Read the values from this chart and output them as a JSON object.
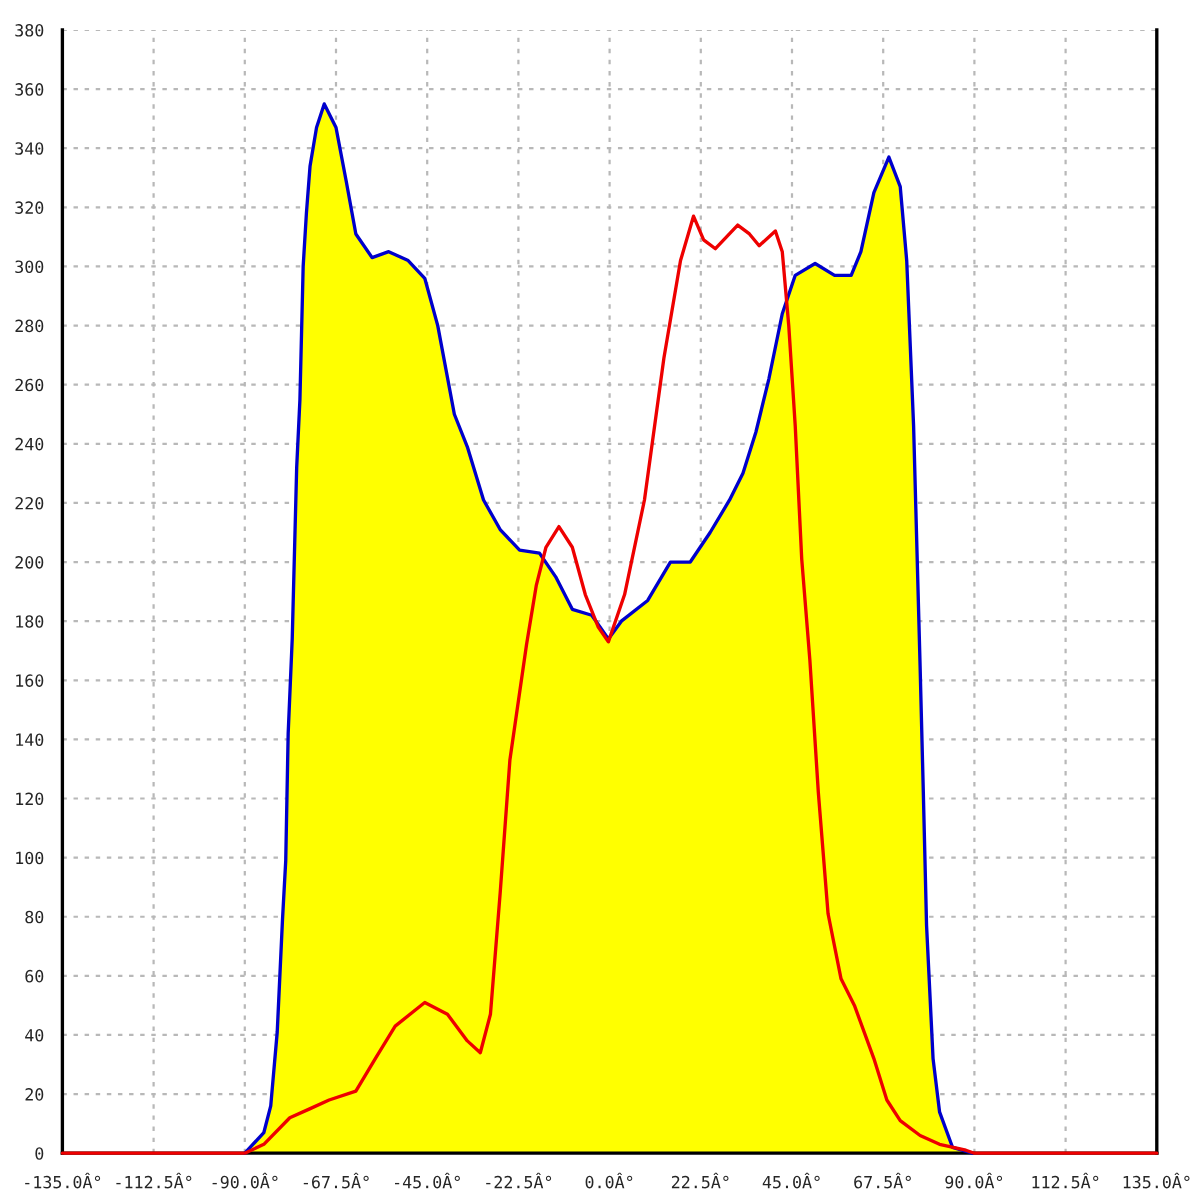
{
  "chart_data": {
    "type": "area",
    "xlim": [
      -135,
      135
    ],
    "ylim": [
      0,
      380
    ],
    "xticks": [
      {
        "value": -135,
        "label": "-135.0Â°"
      },
      {
        "value": -112.5,
        "label": "-112.5Â°"
      },
      {
        "value": -90,
        "label": "-90.0Â°"
      },
      {
        "value": -67.5,
        "label": "-67.5Â°"
      },
      {
        "value": -45,
        "label": "-45.0Â°"
      },
      {
        "value": -22.5,
        "label": "-22.5Â°"
      },
      {
        "value": 0,
        "label": "0.0Â°"
      },
      {
        "value": 22.5,
        "label": "22.5Â°"
      },
      {
        "value": 45,
        "label": "45.0Â°"
      },
      {
        "value": 67.5,
        "label": "67.5Â°"
      },
      {
        "value": 90,
        "label": "90.0Â°"
      },
      {
        "value": 112.5,
        "label": "112.5Â°"
      },
      {
        "value": 135,
        "label": "135.0Â°"
      }
    ],
    "yticks": [
      0,
      20,
      40,
      60,
      80,
      100,
      120,
      140,
      160,
      180,
      200,
      220,
      240,
      260,
      280,
      300,
      320,
      340,
      360,
      380
    ],
    "grid": true,
    "series": [
      {
        "color": "#ffff00",
        "x": [
          -135,
          -90,
          -85.3,
          -83.6,
          -82.0,
          -80.7,
          -79.9,
          -79.3,
          -78.3,
          -77.2,
          -76.4,
          -75.6,
          -74.8,
          -73.9,
          -72.3,
          -70.4,
          -67.5,
          -65,
          -62.6,
          -58.6,
          -54.5,
          -49.7,
          -45.6,
          -42.4,
          -38.3,
          -35.1,
          -31.1,
          -27.0,
          -22.2,
          -17.3,
          -13.3,
          -9.2,
          -4.4,
          -0.3,
          2.9,
          9.4,
          15,
          19.9,
          24.8,
          29.6,
          32.9,
          36.1,
          39.3,
          42.6,
          45.8,
          50.7,
          55.5,
          59.6,
          62,
          65.2,
          68.9,
          71.7,
          73.3,
          75,
          76.6,
          77.4,
          78.2,
          79.8,
          81.4,
          84.6,
          89.5,
          135
        ],
        "values": [
          0,
          0,
          7,
          16,
          41,
          79,
          99,
          142,
          174,
          232,
          255,
          300,
          318,
          334,
          347,
          355,
          347,
          329,
          311,
          303,
          305,
          302,
          296,
          280,
          250,
          239,
          221,
          211,
          204,
          203,
          195,
          184,
          182,
          174,
          180,
          187,
          200,
          200,
          210,
          221,
          230,
          244,
          262,
          284,
          297,
          301,
          297,
          297,
          305,
          325,
          337,
          327,
          302,
          246,
          165,
          122,
          77,
          32,
          14,
          2,
          0,
          0
        ]
      },
      {
        "type": "line",
        "color": "#0000cc",
        "x": [
          -90,
          -85.3,
          -83.6,
          -82.0,
          -80.7,
          -79.9,
          -79.3,
          -78.3,
          -77.2,
          -76.4,
          -75.6,
          -74.8,
          -73.9,
          -72.3,
          -70.4,
          -67.5,
          -65,
          -62.6,
          -58.6,
          -54.5,
          -49.7,
          -45.6,
          -42.4,
          -38.3,
          -35.1,
          -31.1,
          -27.0,
          -22.2,
          -17.3,
          -13.3,
          -9.2,
          -4.4,
          -0.3,
          2.9,
          9.4,
          15,
          19.9,
          24.8,
          29.6,
          32.9,
          36.1,
          39.3,
          42.6,
          45.8,
          50.7,
          55.5,
          59.6,
          62,
          65.2,
          68.9,
          71.7,
          73.3,
          75,
          76.6,
          77.4,
          78.2,
          79.8,
          81.4,
          84.6,
          89.5
        ],
        "values": [
          0,
          7,
          16,
          41,
          79,
          99,
          142,
          174,
          232,
          255,
          300,
          318,
          334,
          347,
          355,
          347,
          329,
          311,
          303,
          305,
          302,
          296,
          280,
          250,
          239,
          221,
          211,
          204,
          203,
          195,
          184,
          182,
          174,
          180,
          187,
          200,
          200,
          210,
          221,
          230,
          244,
          262,
          284,
          297,
          301,
          297,
          297,
          305,
          325,
          337,
          327,
          302,
          246,
          165,
          122,
          77,
          32,
          14,
          2,
          0
        ]
      },
      {
        "type": "line",
        "color": "#ee0000",
        "x": [
          -135,
          -90,
          -85.3,
          -78.9,
          -74,
          -69.2,
          -62.6,
          -57.8,
          -52.9,
          -45.6,
          -40,
          -35.1,
          -31.9,
          -29.4,
          -27,
          -24.6,
          -20.5,
          -18.1,
          -15.7,
          -12.5,
          -9.2,
          -6,
          -2.8,
          -0.3,
          3.7,
          8.6,
          13.4,
          17.5,
          20.7,
          23.2,
          26.1,
          31.6,
          34.5,
          36.9,
          40.9,
          42.6,
          44.2,
          45.8,
          47.4,
          49.4,
          51.5,
          53.9,
          57.1,
          60.4,
          65.2,
          68.4,
          71.7,
          76.6,
          81.4,
          87.9,
          90,
          135
        ],
        "values": [
          0,
          0,
          3,
          12,
          15,
          18,
          21,
          32,
          43,
          51,
          47,
          38,
          34,
          47,
          88,
          133,
          172,
          192,
          205,
          212,
          205,
          189,
          178,
          173,
          189,
          221,
          269,
          302,
          317,
          309,
          306,
          314,
          311,
          307,
          312,
          305,
          280,
          246,
          201,
          167,
          122,
          81,
          59,
          50,
          32,
          18,
          11,
          6,
          3,
          1,
          0,
          0
        ]
      }
    ]
  }
}
